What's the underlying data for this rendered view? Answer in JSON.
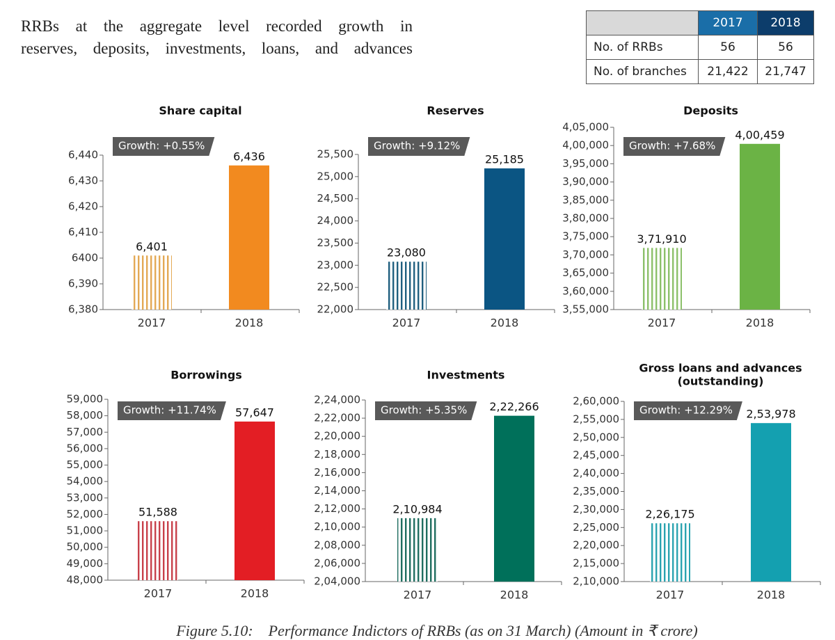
{
  "text": {
    "lines": [
      "RRBs at the aggregate level recorded growth in",
      "reserves, deposits, investments, loans, and advances"
    ]
  },
  "table": {
    "header": [
      "2017",
      "2018"
    ],
    "rows": [
      [
        "No. of RRBs",
        "56",
        "56"
      ],
      [
        "No. of branches",
        "21,422",
        "21,747"
      ]
    ]
  },
  "chart_data": [
    {
      "type": "bar",
      "title": [
        "Share capital"
      ],
      "annotation": "Growth: +0.55%",
      "categories": [
        "2017",
        "2018"
      ],
      "values": [
        6401,
        6436
      ],
      "value_labels": [
        "6,401",
        "6,436"
      ],
      "colors": [
        "#e3a955",
        "#f28a1f"
      ],
      "ylim": [
        6380,
        6440
      ],
      "yticks": [
        {
          "value": 6380,
          "label": "6,380"
        },
        {
          "value": 6390,
          "label": "6,390"
        },
        6400,
        {
          "value": 6410,
          "label": "6,410"
        },
        {
          "value": 6420,
          "label": "6,420"
        },
        {
          "value": 6430,
          "label": "6,430"
        },
        {
          "value": 6440,
          "label": "6,440"
        }
      ]
    },
    {
      "type": "bar",
      "title": [
        "Reserves"
      ],
      "annotation": "Growth: +9.12%",
      "categories": [
        "2017",
        "2018"
      ],
      "values": [
        23080,
        25185
      ],
      "value_labels": [
        "23,080",
        "25,185"
      ],
      "colors": [
        "#1f5f7f",
        "#0b5583"
      ],
      "ylim": [
        22000,
        25500
      ],
      "yticks": [
        {
          "value": 22000,
          "label": "22,000"
        },
        {
          "value": 22500,
          "label": "22,500"
        },
        {
          "value": 23000,
          "label": "23,000"
        },
        {
          "value": 23500,
          "label": "23,500"
        },
        {
          "value": 24000,
          "label": "24,000"
        },
        {
          "value": 24500,
          "label": "24,500"
        },
        {
          "value": 25000,
          "label": "25,000"
        },
        {
          "value": 25500,
          "label": "25,500"
        }
      ]
    },
    {
      "type": "bar",
      "title": [
        "Deposits"
      ],
      "annotation": "Growth: +7.68%",
      "categories": [
        "2017",
        "2018"
      ],
      "values": [
        371910,
        400459
      ],
      "value_labels": [
        "3,71,910",
        "4,00,459"
      ],
      "colors": [
        "#8cc06a",
        "#6bb345"
      ],
      "ylim": [
        355000,
        405000
      ],
      "yticks": [
        {
          "value": 355000,
          "label": "3,55,000"
        },
        {
          "value": 360000,
          "label": "3,60,000"
        },
        {
          "value": 365000,
          "label": "3,65,000"
        },
        {
          "value": 370000,
          "label": "3,70,000"
        },
        {
          "value": 375000,
          "label": "3,75,000"
        },
        {
          "value": 380000,
          "label": "3,80,000"
        },
        {
          "value": 385000,
          "label": "3,85,000"
        },
        {
          "value": 390000,
          "label": "3,90,000"
        },
        {
          "value": 395000,
          "label": "3,95,000"
        },
        {
          "value": 400000,
          "label": "4,00,000"
        },
        {
          "value": 405000,
          "label": "4,05,000"
        }
      ]
    },
    {
      "type": "bar",
      "title": [
        "Borrowings"
      ],
      "annotation": "Growth: +11.74%",
      "categories": [
        "2017",
        "2018"
      ],
      "values": [
        51588,
        57647
      ],
      "value_labels": [
        "51,588",
        "57,647"
      ],
      "colors": [
        "#c8404a",
        "#e31e24"
      ],
      "ylim": [
        48000,
        59000
      ],
      "yticks": [
        {
          "value": 48000,
          "label": "48,000"
        },
        {
          "value": 49000,
          "label": "49,000"
        },
        {
          "value": 50000,
          "label": "50,000"
        },
        {
          "value": 51000,
          "label": "51,000"
        },
        {
          "value": 52000,
          "label": "52,000"
        },
        {
          "value": 53000,
          "label": "53,000"
        },
        {
          "value": 54000,
          "label": "54,000"
        },
        {
          "value": 55000,
          "label": "55,000"
        },
        {
          "value": 56000,
          "label": "56,000"
        },
        {
          "value": 57000,
          "label": "57,000"
        },
        {
          "value": 58000,
          "label": "58,000"
        },
        {
          "value": 59000,
          "label": "59,000"
        }
      ]
    },
    {
      "type": "bar",
      "title": [
        "Investments"
      ],
      "annotation": "Growth: +5.35%",
      "categories": [
        "2017",
        "2018"
      ],
      "values": [
        210984,
        222266
      ],
      "value_labels": [
        "2,10,984",
        "2,22,266"
      ],
      "colors": [
        "#1f6e60",
        "#00705a"
      ],
      "ylim": [
        204000,
        224000
      ],
      "yticks": [
        {
          "value": 204000,
          "label": "2,04,000"
        },
        {
          "value": 206000,
          "label": "2,06,000"
        },
        {
          "value": 208000,
          "label": "2,08,000"
        },
        {
          "value": 210000,
          "label": "2,10,000"
        },
        {
          "value": 212000,
          "label": "2,12,000"
        },
        {
          "value": 214000,
          "label": "2,14,000"
        },
        {
          "value": 216000,
          "label": "2,16,000"
        },
        {
          "value": 218000,
          "label": "2,18,000"
        },
        {
          "value": 220000,
          "label": "2,20,000"
        },
        {
          "value": 222000,
          "label": "2,22,000"
        },
        {
          "value": 224000,
          "label": "2,24,000"
        }
      ]
    },
    {
      "type": "bar",
      "title": [
        "Gross loans and advances",
        "(outstanding)"
      ],
      "annotation": "Growth: +12.29%",
      "categories": [
        "2017",
        "2018"
      ],
      "values": [
        226175,
        253978
      ],
      "value_labels": [
        "2,26,175",
        "2,53,978"
      ],
      "colors": [
        "#2aa3b0",
        "#14a0b0"
      ],
      "ylim": [
        210000,
        260000
      ],
      "yticks": [
        {
          "value": 210000,
          "label": "2,10,000"
        },
        {
          "value": 215000,
          "label": "2,15,000"
        },
        {
          "value": 220000,
          "label": "2,20,000"
        },
        {
          "value": 225000,
          "label": "2,25,000"
        },
        {
          "value": 230000,
          "label": "2,30,000"
        },
        {
          "value": 235000,
          "label": "2,35,000"
        },
        {
          "value": 240000,
          "label": "2,40,000"
        },
        {
          "value": 245000,
          "label": "2,45,000"
        },
        {
          "value": 250000,
          "label": "2,50,000"
        },
        {
          "value": 255000,
          "label": "2,55,000"
        },
        {
          "value": 260000,
          "label": "2,60,000"
        }
      ]
    }
  ],
  "caption": {
    "label": "Figure 5.10:",
    "text": "Performance Indictors of RRBs (as on 31 March) (Amount in ₹ crore)"
  }
}
